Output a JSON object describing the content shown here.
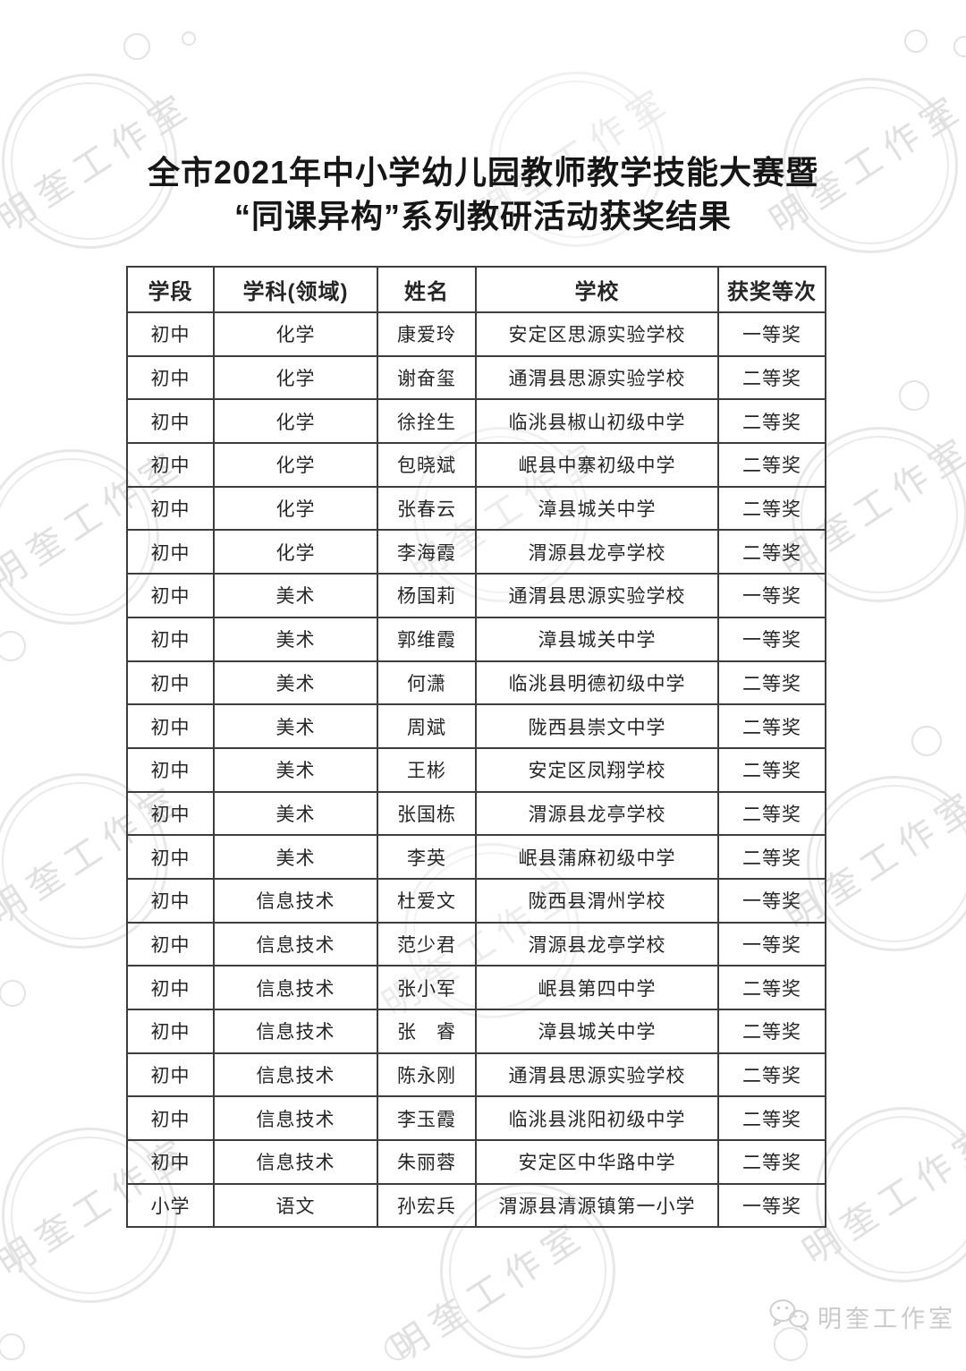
{
  "title": {
    "line1": "全市2021年中小学幼儿园教师教学技能大赛暨",
    "line2": "“同课异构”系列教研活动获奖结果"
  },
  "watermark": {
    "text": "明奎工作室"
  },
  "footer": {
    "brand": "明奎工作室",
    "icon": "wechat-icon"
  },
  "colors": {
    "table_border": "#3d3d3d",
    "body_text": "#262626",
    "watermark_gray": "#e0e0e0",
    "footer_gray": "#cbcbcb"
  },
  "table": {
    "headers": [
      "学段",
      "学科(领域)",
      "姓名",
      "学校",
      "获奖等次"
    ],
    "rows": [
      [
        "初中",
        "化学",
        "康爱玲",
        "安定区思源实验学校",
        "一等奖"
      ],
      [
        "初中",
        "化学",
        "谢奋玺",
        "通渭县思源实验学校",
        "二等奖"
      ],
      [
        "初中",
        "化学",
        "徐拴生",
        "临洮县椒山初级中学",
        "二等奖"
      ],
      [
        "初中",
        "化学",
        "包晓斌",
        "岷县中寨初级中学",
        "二等奖"
      ],
      [
        "初中",
        "化学",
        "张春云",
        "漳县城关中学",
        "二等奖"
      ],
      [
        "初中",
        "化学",
        "李海霞",
        "渭源县龙亭学校",
        "二等奖"
      ],
      [
        "初中",
        "美术",
        "杨国莉",
        "通渭县思源实验学校",
        "一等奖"
      ],
      [
        "初中",
        "美术",
        "郭维霞",
        "漳县城关中学",
        "一等奖"
      ],
      [
        "初中",
        "美术",
        "何潇",
        "临洮县明德初级中学",
        "二等奖"
      ],
      [
        "初中",
        "美术",
        "周斌",
        "陇西县崇文中学",
        "二等奖"
      ],
      [
        "初中",
        "美术",
        "王彬",
        "安定区凤翔学校",
        "二等奖"
      ],
      [
        "初中",
        "美术",
        "张国栋",
        "渭源县龙亭学校",
        "二等奖"
      ],
      [
        "初中",
        "美术",
        "李英",
        "岷县蒲麻初级中学",
        "二等奖"
      ],
      [
        "初中",
        "信息技术",
        "杜爱文",
        "陇西县渭州学校",
        "一等奖"
      ],
      [
        "初中",
        "信息技术",
        "范少君",
        "渭源县龙亭学校",
        "一等奖"
      ],
      [
        "初中",
        "信息技术",
        "张小军",
        "岷县第四中学",
        "二等奖"
      ],
      [
        "初中",
        "信息技术",
        "张　睿",
        "漳县城关中学",
        "二等奖"
      ],
      [
        "初中",
        "信息技术",
        "陈永刚",
        "通渭县思源实验学校",
        "二等奖"
      ],
      [
        "初中",
        "信息技术",
        "李玉霞",
        "临洮县洮阳初级中学",
        "二等奖"
      ],
      [
        "初中",
        "信息技术",
        "朱丽蓉",
        "安定区中华路中学",
        "二等奖"
      ],
      [
        "小学",
        "语文",
        "孙宏兵",
        "渭源县清源镇第一小学",
        "一等奖"
      ]
    ]
  }
}
